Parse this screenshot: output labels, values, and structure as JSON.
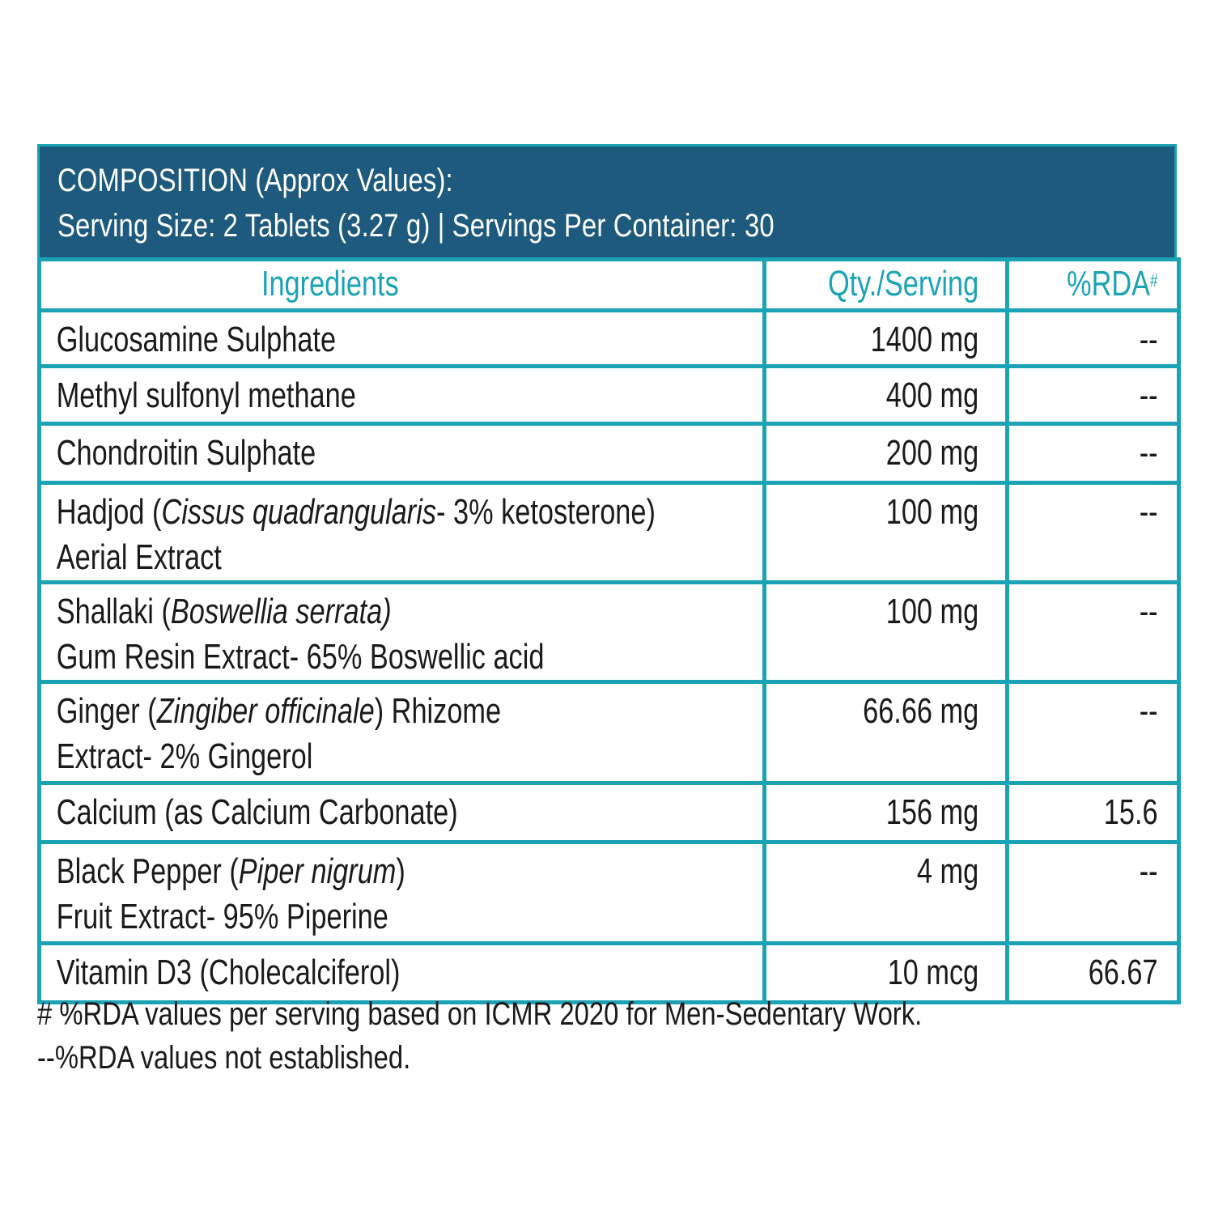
{
  "header": {
    "line1": "COMPOSITION (Approx Values):",
    "line2": "Serving Size: 2 Tablets (3.27 g) | Servings Per Container: 30"
  },
  "table": {
    "columns": {
      "ingredients": "Ingredients",
      "qty": "Qty./Serving",
      "rda": "%RDA",
      "rda_mark": "#"
    },
    "rows": [
      {
        "line1_a": "Glucosamine Sulphate",
        "qty": "1400 mg",
        "rda": "--"
      },
      {
        "line1_a": "Methyl sulfonyl methane",
        "qty": "400 mg",
        "rda": "--"
      },
      {
        "line1_a": "Chondroitin Sulphate",
        "qty": "200 mg",
        "rda": "--"
      },
      {
        "line1_a": "Hadjod (",
        "line1_i": "Cissus quadrangularis",
        "line1_b": "- 3% ketosterone)",
        "line2": "Aerial Extract",
        "qty": "100 mg",
        "rda": "--"
      },
      {
        "line1_a": "Shallaki (",
        "line1_i": "Boswellia serrata)",
        "line1_b": "",
        "line2": "Gum Resin Extract- 65% Boswellic acid",
        "qty": "100 mg",
        "rda": "--"
      },
      {
        "line1_a": "Ginger (",
        "line1_i": "Zingiber officinale",
        "line1_b": ") Rhizome",
        "line2": "Extract- 2% Gingerol",
        "qty": "66.66  mg",
        "rda": "--"
      },
      {
        "line1_a": "Calcium (as Calcium Carbonate)",
        "qty": "156 mg",
        "rda": "15.6"
      },
      {
        "line1_a": "Black Pepper (",
        "line1_i": "Piper nigrum",
        "line1_b": ")",
        "line2": "Fruit Extract- 95% Piperine",
        "qty": "4  mg",
        "rda": "--"
      },
      {
        "line1_a": "Vitamin D3 (Cholecalciferol)",
        "qty": "10  mcg",
        "rda": "66.67"
      }
    ]
  },
  "footnotes": {
    "note1": "# %RDA values per serving based on ICMR  2020 for Men-Sedentary Work.",
    "note2": "--%RDA values not established."
  },
  "colors": {
    "header_bg": "#1e5a7d",
    "accent": "#1aa3b5",
    "text": "#1a1a1a"
  }
}
